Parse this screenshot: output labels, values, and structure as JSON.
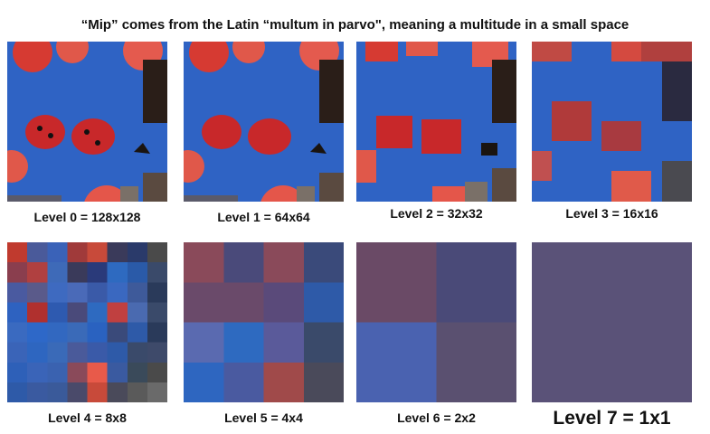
{
  "title": "“Mip” comes from the Latin “multum in parvo\", meaning a multitude in a small space",
  "levels": [
    {
      "label": "Level 0 = 128x128"
    },
    {
      "label": "Level 1 = 64x64"
    },
    {
      "label": "Level 2 = 32x32"
    },
    {
      "label": "Level 3 = 16x16"
    },
    {
      "label": "Level 4 = 8x8"
    },
    {
      "label": "Level 5 = 4x4"
    },
    {
      "label": "Level 6 = 2x2"
    },
    {
      "label": "Level 7 = 1x1"
    }
  ],
  "colors": {
    "background_blue": "#2f63c4",
    "ladybug_red": "#c8282a",
    "candy_red": "#e8584e",
    "dark_chocolate": "#2a1e18",
    "level7_fill": "#5a5278"
  },
  "grids": {
    "level4": [
      [
        "#c03a2e",
        "#4a5a9a",
        "#3a62b8",
        "#a03a3a",
        "#c84a3a",
        "#3a3a5a",
        "#2a3a6a",
        "#4a4a4a"
      ],
      [
        "#8a3e4e",
        "#b04040",
        "#3e6ab8",
        "#3a3a5a",
        "#2a3a7a",
        "#2e6ac0",
        "#2a5aa8",
        "#3a4a6a"
      ],
      [
        "#4a5aa0",
        "#5a5a8a",
        "#3e6ac0",
        "#4a6ab8",
        "#3a5aa8",
        "#3a68c0",
        "#3e5a9a",
        "#2a3a5a"
      ],
      [
        "#2e62c0",
        "#b0302e",
        "#2e5ab0",
        "#4a4a7a",
        "#2e6ac0",
        "#c04040",
        "#4a6ab0",
        "#3a4a6a"
      ],
      [
        "#3a6ac0",
        "#2e68c8",
        "#3268c0",
        "#3a6ab8",
        "#2a62c0",
        "#3a4a7a",
        "#2e5aa8",
        "#2a3a5a"
      ],
      [
        "#3a64b8",
        "#2e66c0",
        "#3a6ab8",
        "#4a5a9a",
        "#3a5aa8",
        "#2e5aa8",
        "#3a4a6a",
        "#3e4a6a"
      ],
      [
        "#2e60b8",
        "#3a64b8",
        "#3a62b0",
        "#8a4a5a",
        "#e85a4a",
        "#3a5aa0",
        "#3a4a5a",
        "#4a4a4a"
      ],
      [
        "#2e5aa8",
        "#3a5aa0",
        "#3a5a9a",
        "#4a4a6a",
        "#c84a3a",
        "#4a4a5a",
        "#5a5a5a",
        "#6a6a6a"
      ]
    ],
    "level5": [
      [
        "#8a4a5a",
        "#4a4a7a",
        "#8a4a5a",
        "#3a4a7a"
      ],
      [
        "#6a4a6a",
        "#6a4a6a",
        "#5a4a7a",
        "#2e5aa8"
      ],
      [
        "#5a6ab0",
        "#2e6ac0",
        "#5a5a9a",
        "#3a4a6a"
      ],
      [
        "#2e66c0",
        "#4a5aa0",
        "#a04a4a",
        "#4a4a5a"
      ]
    ],
    "level6": [
      [
        "#6a4a66",
        "#4a4a78"
      ],
      [
        "#4a62b0",
        "#5a5070"
      ]
    ]
  }
}
